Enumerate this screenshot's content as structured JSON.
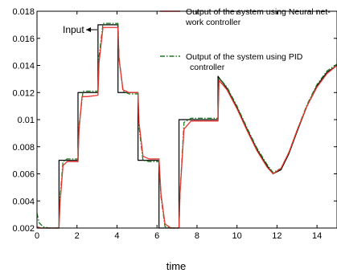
{
  "chart_data": {
    "type": "line",
    "xlabel": "time",
    "ylabel": "",
    "xlim": [
      0,
      15
    ],
    "ylim": [
      0.002,
      0.018
    ],
    "x_ticks": [
      0,
      2,
      4,
      6,
      8,
      10,
      12,
      14
    ],
    "y_ticks": [
      0.002,
      0.004,
      0.006,
      0.008,
      0.01,
      0.012,
      0.014,
      0.016,
      0.018
    ],
    "x_tick_labels": [
      "0",
      "2",
      "4",
      "6",
      "8",
      "10",
      "12",
      "14"
    ],
    "y_tick_labels": [
      "0.002",
      "0.004",
      "0.006",
      "0.008",
      "0.01",
      "0.012",
      "0.014",
      "0.016",
      "0.018"
    ],
    "grid": false,
    "legend_position": "top-right",
    "annotation": "Input",
    "series": [
      {
        "name": "",
        "role": "input",
        "color": "#000000",
        "style": "solid",
        "x": [
          0,
          1.1,
          1.1,
          2.05,
          2.05,
          3.05,
          3.05,
          4.05,
          4.05,
          5.05,
          5.05,
          6.1,
          6.1,
          7.1,
          7.1,
          9.05,
          9.05,
          9.5,
          10,
          10.5,
          11,
          11.5,
          11.8,
          12.2,
          12.6,
          13,
          13.5,
          14,
          14.5,
          15
        ],
        "y": [
          0.002,
          0.002,
          0.007,
          0.007,
          0.012,
          0.012,
          0.017,
          0.017,
          0.012,
          0.012,
          0.007,
          0.007,
          0.002,
          0.002,
          0.01,
          0.01,
          0.0132,
          0.0123,
          0.0109,
          0.0093,
          0.0078,
          0.0066,
          0.006,
          0.0063,
          0.0075,
          0.0091,
          0.011,
          0.0125,
          0.0135,
          0.014
        ]
      },
      {
        "name": "Output of the system using Neural net-work controller",
        "role": "neural",
        "color": "#e8352e",
        "style": "solid",
        "x": [
          0,
          0.2,
          0.5,
          1.1,
          1.15,
          1.3,
          1.5,
          2.05,
          2.1,
          2.25,
          2.5,
          3.05,
          3.1,
          3.3,
          3.6,
          4.05,
          4.1,
          4.3,
          4.6,
          5.05,
          5.1,
          5.3,
          5.6,
          6.1,
          6.2,
          6.4,
          6.7,
          7.1,
          7.15,
          7.35,
          7.7,
          9.05,
          9.1,
          9.5,
          10,
          10.5,
          11,
          11.5,
          11.8,
          12.2,
          12.6,
          13,
          13.5,
          14,
          14.5,
          15
        ],
        "y": [
          0.0021,
          0.002,
          0.002,
          0.002,
          0.0038,
          0.0066,
          0.0069,
          0.0069,
          0.0092,
          0.0117,
          0.0117,
          0.0118,
          0.0142,
          0.0168,
          0.0168,
          0.0168,
          0.0145,
          0.0122,
          0.012,
          0.012,
          0.0098,
          0.0073,
          0.0071,
          0.0071,
          0.0045,
          0.0023,
          0.002,
          0.002,
          0.0045,
          0.0093,
          0.0099,
          0.0099,
          0.0129,
          0.0122,
          0.0108,
          0.0092,
          0.0077,
          0.0065,
          0.006,
          0.0064,
          0.0076,
          0.0092,
          0.011,
          0.0124,
          0.0134,
          0.014
        ]
      },
      {
        "name": "Output of the system using PID controller",
        "role": "pid",
        "color": "#1f7a1f",
        "style": "dash-dot",
        "x": [
          0,
          0.1,
          0.3,
          0.6,
          1.1,
          1.15,
          1.3,
          1.5,
          2.05,
          2.1,
          2.3,
          2.5,
          3.05,
          3.1,
          3.3,
          3.6,
          4.05,
          4.1,
          4.3,
          4.6,
          5.05,
          5.1,
          5.3,
          5.6,
          6.1,
          6.2,
          6.4,
          6.7,
          7.1,
          7.15,
          7.35,
          7.7,
          9.05,
          9.1,
          9.5,
          10,
          10.5,
          11,
          11.5,
          11.8,
          12.2,
          12.6,
          13,
          13.5,
          14,
          14.5,
          15
        ],
        "y": [
          0.0031,
          0.0024,
          0.0021,
          0.002,
          0.002,
          0.0042,
          0.0069,
          0.0071,
          0.0071,
          0.0095,
          0.0121,
          0.0121,
          0.0121,
          0.0146,
          0.0171,
          0.0171,
          0.0171,
          0.0146,
          0.0121,
          0.0119,
          0.0119,
          0.0095,
          0.007,
          0.0069,
          0.0069,
          0.0043,
          0.0021,
          0.002,
          0.002,
          0.0045,
          0.0098,
          0.0101,
          0.0101,
          0.0131,
          0.0124,
          0.011,
          0.0094,
          0.0079,
          0.0067,
          0.0061,
          0.0064,
          0.0076,
          0.0092,
          0.0111,
          0.0126,
          0.0136,
          0.0141
        ]
      }
    ]
  }
}
